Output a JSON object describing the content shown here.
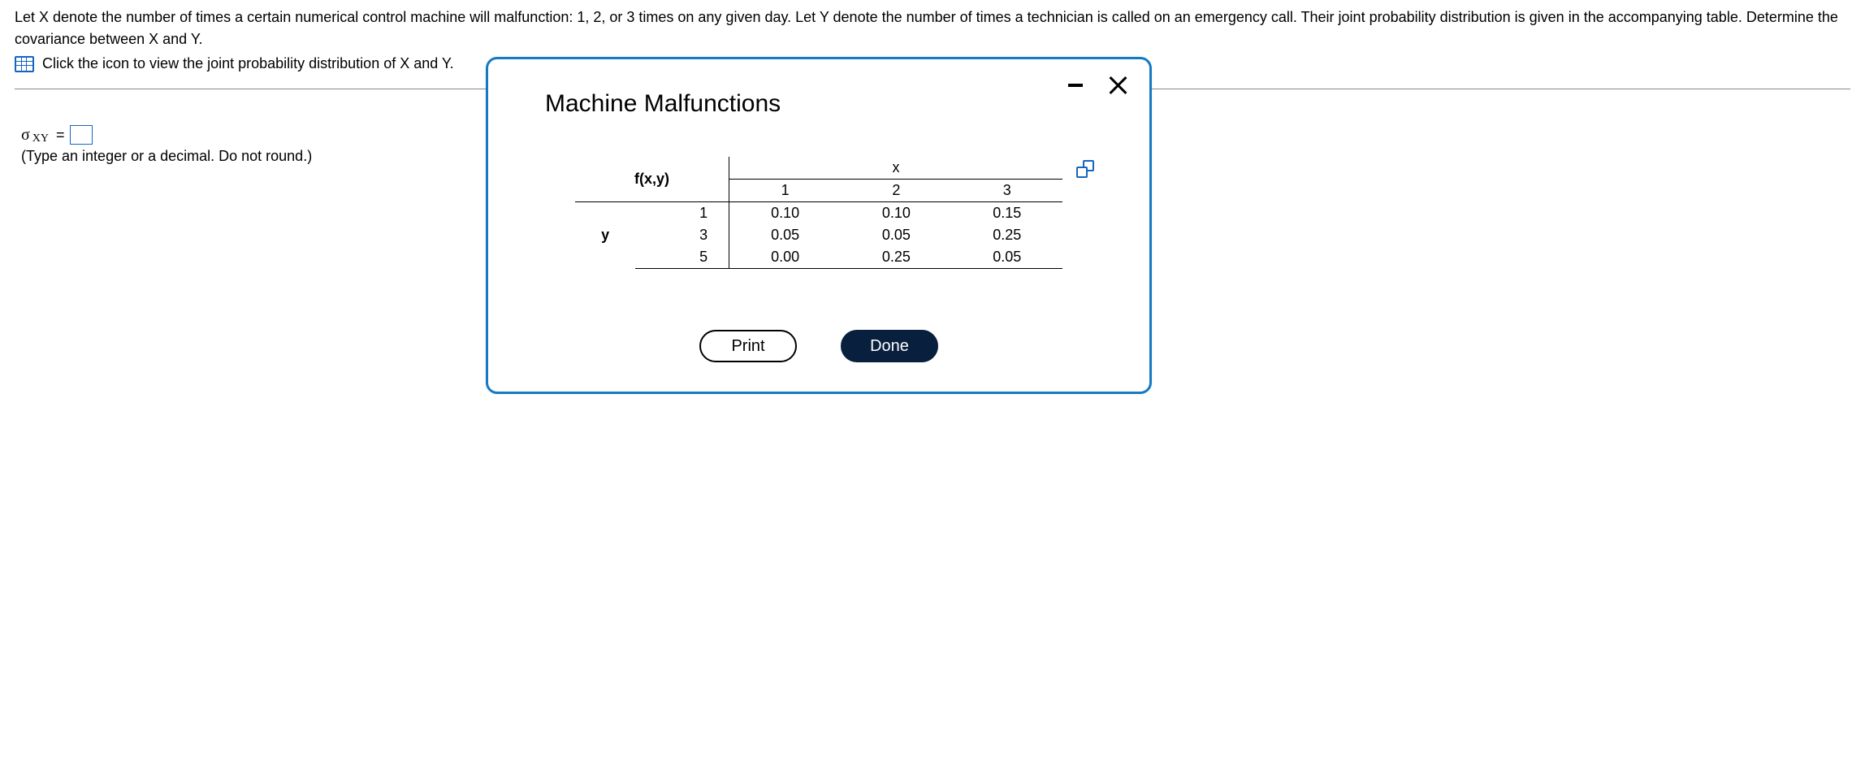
{
  "question": {
    "text": "Let X denote the number of times a certain numerical control machine will malfunction: 1, 2, or 3 times on any given day. Let Y denote the number of times a technician is called on an emergency call. Their joint probability distribution is given in the accompanying table. Determine the covariance between X and Y.",
    "icon_prompt": "Click the icon to view the joint probability distribution of X and Y."
  },
  "answer": {
    "sigma_label": "σ",
    "sigma_sub": "XY",
    "equals": "=",
    "value": "",
    "hint": "(Type an integer or a decimal. Do not round.)"
  },
  "modal": {
    "title": "Machine Malfunctions",
    "table": {
      "func_label": "f(x,y)",
      "x_label": "x",
      "y_label": "y",
      "x_values": [
        "1",
        "2",
        "3"
      ],
      "y_values": [
        "1",
        "3",
        "5"
      ],
      "rows": [
        [
          "0.10",
          "0.10",
          "0.15"
        ],
        [
          "0.05",
          "0.05",
          "0.25"
        ],
        [
          "0.00",
          "0.25",
          "0.05"
        ]
      ]
    },
    "buttons": {
      "print": "Print",
      "done": "Done"
    }
  },
  "colors": {
    "modal_border": "#1679c4",
    "icon_blue": "#1565c0",
    "done_bg": "#081f3e"
  }
}
